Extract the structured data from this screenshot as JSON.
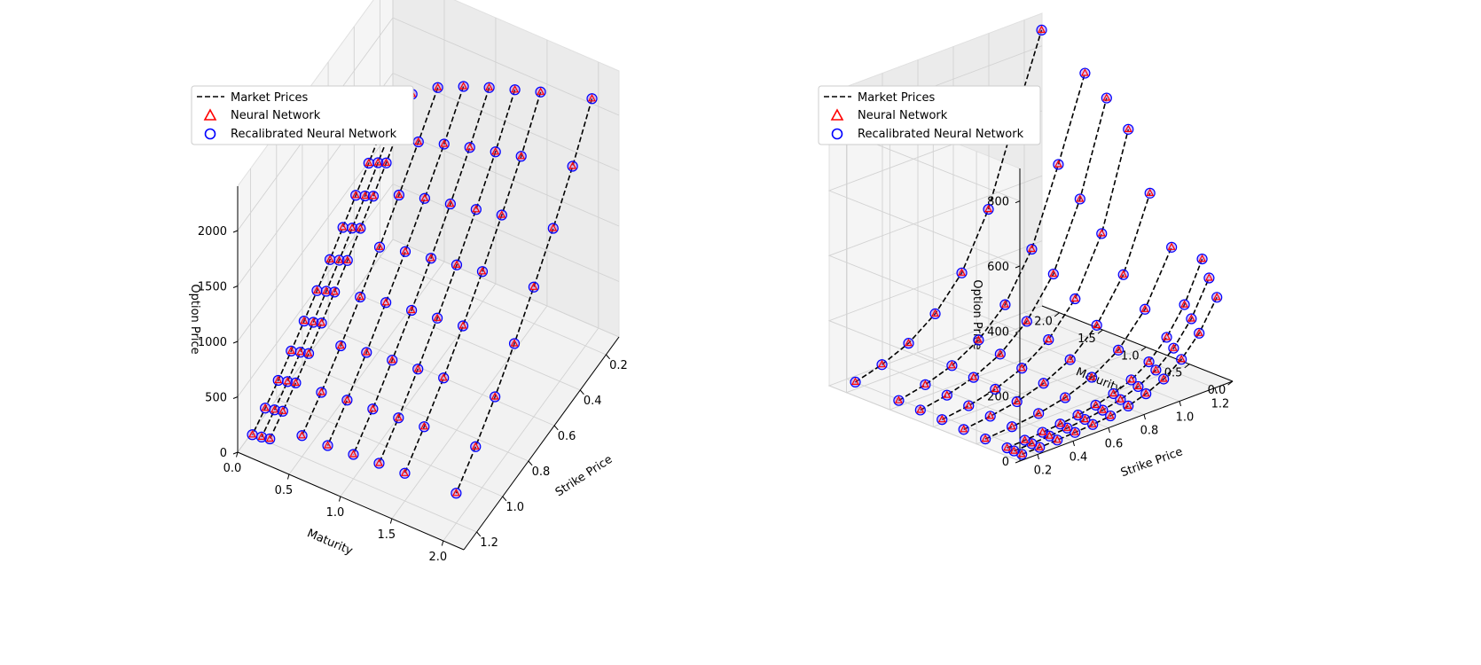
{
  "chart_data": [
    {
      "type": "scatter3d",
      "panel": "left",
      "xlabel": "Maturity",
      "ylabel": "Strike Price",
      "zlabel": "Option Price",
      "xlim": [
        0.0,
        2.2
      ],
      "ylim": [
        0.1,
        1.3
      ],
      "zlim": [
        0,
        2400
      ],
      "xticks": [
        "0.0",
        "0.5",
        "1.0",
        "1.5",
        "2.0"
      ],
      "yticks": [
        "0.2",
        "0.4",
        "0.6",
        "0.8",
        "1.0",
        "1.2"
      ],
      "zticks": [
        "0",
        "500",
        "1000",
        "1500",
        "2000"
      ],
      "legend": {
        "position": "top-left",
        "entries": [
          "Market Prices",
          "Neural Network",
          "Recalibrated Neural Network"
        ]
      },
      "series": [
        {
          "maturity": 0.08,
          "strikes": [
            0.15,
            0.25,
            0.35,
            0.45,
            0.55,
            0.65,
            0.75,
            0.85,
            0.95,
            1.05,
            1.15,
            1.25
          ],
          "prices": [
            1410,
            1260,
            1120,
            990,
            860,
            730,
            610,
            495,
            385,
            280,
            190,
            110
          ]
        },
        {
          "maturity": 0.17,
          "strikes": [
            0.15,
            0.25,
            0.35,
            0.45,
            0.55,
            0.65,
            0.75,
            0.85,
            0.95,
            1.05,
            1.15,
            1.25
          ],
          "prices": [
            1450,
            1300,
            1160,
            1020,
            890,
            760,
            640,
            520,
            410,
            305,
            210,
            125
          ]
        },
        {
          "maturity": 0.25,
          "strikes": [
            0.15,
            0.25,
            0.35,
            0.45,
            0.55,
            0.65,
            0.75,
            0.85,
            0.95,
            1.05,
            1.15,
            1.25
          ],
          "prices": [
            1490,
            1340,
            1190,
            1050,
            920,
            790,
            665,
            545,
            430,
            325,
            230,
            140
          ]
        },
        {
          "maturity": 0.5,
          "strikes": [
            0.15,
            0.3,
            0.45,
            0.6,
            0.75,
            0.9,
            1.05,
            1.2
          ],
          "prices": [
            1650,
            1400,
            1160,
            930,
            720,
            520,
            340,
            190
          ]
        },
        {
          "maturity": 0.75,
          "strikes": [
            0.15,
            0.3,
            0.45,
            0.6,
            0.75,
            0.9,
            1.05,
            1.2
          ],
          "prices": [
            1760,
            1480,
            1230,
            990,
            770,
            560,
            370,
            200
          ]
        },
        {
          "maturity": 1.0,
          "strikes": [
            0.15,
            0.3,
            0.45,
            0.6,
            0.75,
            0.9,
            1.05,
            1.2
          ],
          "prices": [
            1850,
            1550,
            1280,
            1030,
            800,
            590,
            390,
            220
          ]
        },
        {
          "maturity": 1.25,
          "strikes": [
            0.15,
            0.3,
            0.45,
            0.6,
            0.75,
            0.9,
            1.05,
            1.2
          ],
          "prices": [
            1930,
            1610,
            1330,
            1070,
            830,
            610,
            410,
            240
          ]
        },
        {
          "maturity": 1.5,
          "strikes": [
            0.15,
            0.3,
            0.45,
            0.6,
            0.75,
            0.9,
            1.05,
            1.2
          ],
          "prices": [
            2010,
            1670,
            1380,
            1110,
            860,
            630,
            430,
            250
          ]
        },
        {
          "maturity": 2.0,
          "strikes": [
            0.15,
            0.3,
            0.45,
            0.6,
            0.75,
            0.9,
            1.05,
            1.2
          ],
          "prices": [
            2150,
            1780,
            1460,
            1170,
            900,
            660,
            450,
            270
          ]
        }
      ]
    },
    {
      "type": "scatter3d",
      "panel": "right",
      "xlabel": "Strike Price",
      "ylabel": "Maturity",
      "zlabel": "Option Price",
      "xlim": [
        0.1,
        1.3
      ],
      "ylim": [
        0.0,
        2.2
      ],
      "zlim": [
        0,
        900
      ],
      "xticks": [
        "0.2",
        "0.4",
        "0.6",
        "0.8",
        "1.0",
        "1.2"
      ],
      "yticks": [
        "0.0",
        "0.5",
        "1.0",
        "1.5",
        "2.0"
      ],
      "zticks": [
        "0",
        "200",
        "400",
        "600",
        "800"
      ],
      "legend": {
        "position": "top-left",
        "entries": [
          "Market Prices",
          "Neural Network",
          "Recalibrated Neural Network"
        ]
      },
      "series": [
        {
          "maturity": 0.08,
          "strikes": [
            0.15,
            0.25,
            0.35,
            0.45,
            0.55,
            0.65,
            0.75,
            0.85,
            0.95,
            1.05,
            1.15,
            1.25
          ],
          "prices": [
            2,
            3,
            5,
            8,
            12,
            18,
            28,
            45,
            70,
            110,
            170,
            260
          ]
        },
        {
          "maturity": 0.17,
          "strikes": [
            0.15,
            0.25,
            0.35,
            0.45,
            0.55,
            0.65,
            0.75,
            0.85,
            0.95,
            1.05,
            1.15,
            1.25
          ],
          "prices": [
            3,
            5,
            8,
            12,
            18,
            26,
            38,
            58,
            88,
            135,
            205,
            310
          ]
        },
        {
          "maturity": 0.25,
          "strikes": [
            0.15,
            0.25,
            0.35,
            0.45,
            0.55,
            0.65,
            0.75,
            0.85,
            0.95,
            1.05,
            1.15,
            1.25
          ],
          "prices": [
            4,
            7,
            11,
            16,
            23,
            33,
            48,
            70,
            105,
            160,
            240,
            360
          ]
        },
        {
          "maturity": 0.5,
          "strikes": [
            0.15,
            0.3,
            0.45,
            0.6,
            0.75,
            0.9,
            1.05,
            1.2
          ],
          "prices": [
            5,
            12,
            22,
            40,
            72,
            125,
            220,
            380
          ]
        },
        {
          "maturity": 0.75,
          "strikes": [
            0.15,
            0.3,
            0.45,
            0.6,
            0.75,
            0.9,
            1.05,
            1.2
          ],
          "prices": [
            8,
            18,
            32,
            58,
            100,
            175,
            300,
            520
          ]
        },
        {
          "maturity": 1.0,
          "strikes": [
            0.15,
            0.3,
            0.45,
            0.6,
            0.75,
            0.9,
            1.05,
            1.2
          ],
          "prices": [
            12,
            24,
            44,
            78,
            135,
            230,
            400,
            690
          ]
        },
        {
          "maturity": 1.25,
          "strikes": [
            0.15,
            0.3,
            0.45,
            0.6,
            0.75,
            0.9,
            1.05,
            1.2
          ],
          "prices": [
            15,
            30,
            54,
            95,
            165,
            280,
            480,
            760
          ]
        },
        {
          "maturity": 1.5,
          "strikes": [
            0.15,
            0.3,
            0.45,
            0.6,
            0.75,
            0.9,
            1.05,
            1.2
          ],
          "prices": [
            18,
            36,
            64,
            112,
            190,
            330,
            560,
            810
          ]
        },
        {
          "maturity": 2.0,
          "strikes": [
            0.15,
            0.3,
            0.45,
            0.6,
            0.75,
            0.9,
            1.05,
            1.2
          ],
          "prices": [
            22,
            45,
            80,
            140,
            235,
            400,
            650,
            890
          ]
        }
      ]
    }
  ],
  "colors": {
    "market": "#000000",
    "neural_network": "#ff0000",
    "recalibrated": "#0000ff",
    "pane": "#f2f2f2",
    "grid": "#d9d9d9"
  }
}
